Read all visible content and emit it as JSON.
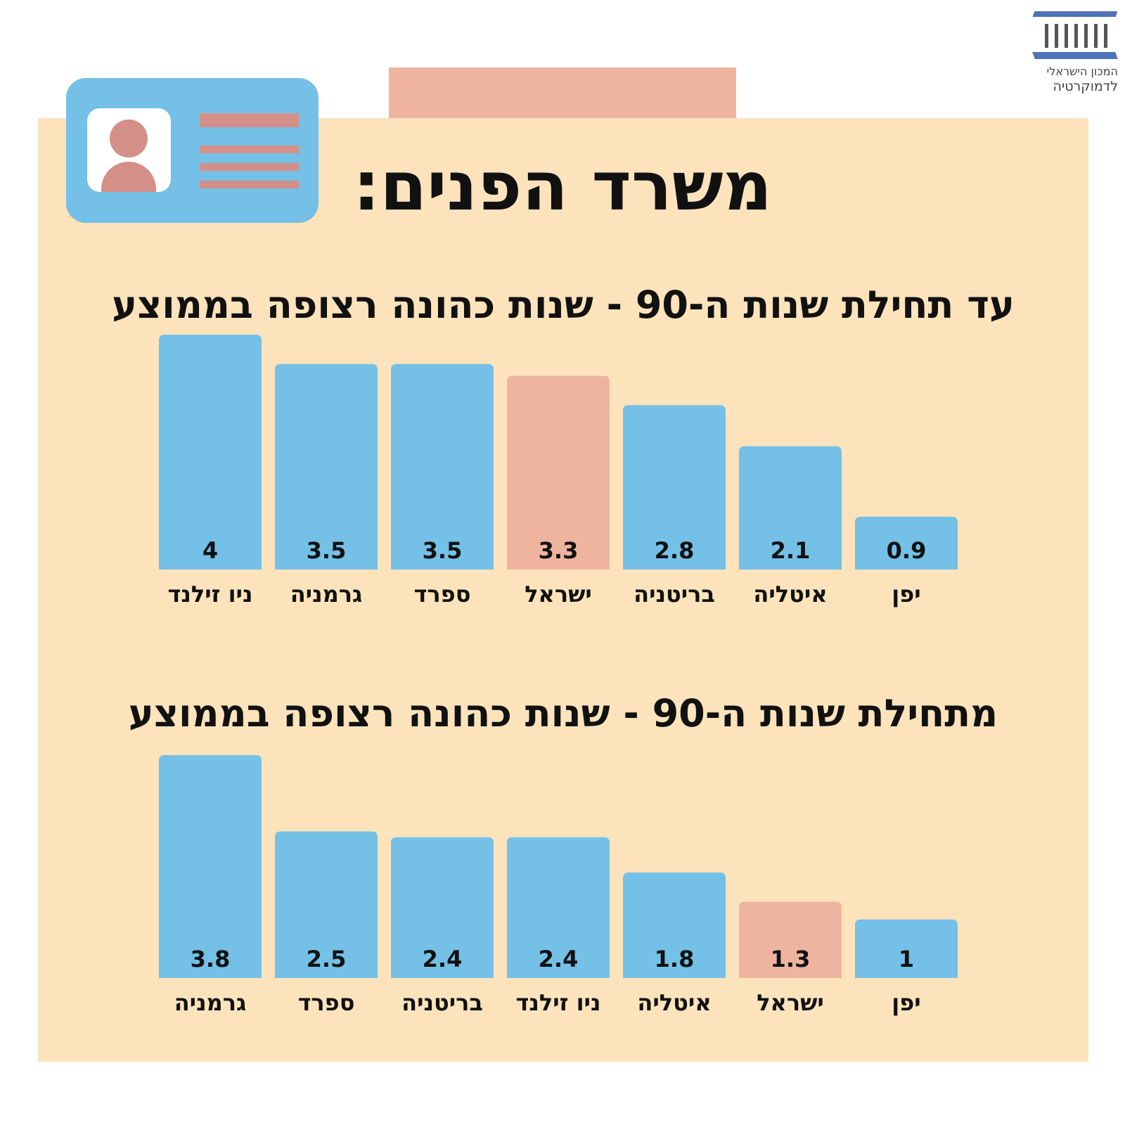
{
  "header": {
    "title": "משרד הפנים:",
    "logo": {
      "line1": "המכון הישראלי",
      "line2": "לדמוקרטיה",
      "icon": "building-columns-icon",
      "color": "#4f73b8"
    }
  },
  "colors": {
    "panel": "#fce3bb",
    "bar": "#74c0e6",
    "bar_highlight": "#efb4a0",
    "text": "#111111"
  },
  "chart_data": [
    {
      "type": "bar",
      "title": "עד תחילת שנות ה-90 - שנות כהונה רצופה בממוצע",
      "categories": [
        "ניו זילנד",
        "גרמניה",
        "ספרד",
        "ישראל",
        "בריטניה",
        "איטליה",
        "יפן"
      ],
      "values": [
        4,
        3.5,
        3.5,
        3.3,
        2.8,
        2.1,
        0.9
      ],
      "value_labels": [
        "4",
        "3.5",
        "3.5",
        "3.3",
        "2.8",
        "2.1",
        "0.9"
      ],
      "highlight": "ישראל",
      "ylim": [
        0,
        4
      ]
    },
    {
      "type": "bar",
      "title": "מתחילת שנות ה-90 - שנות כהונה רצופה בממוצע",
      "categories": [
        "גרמניה",
        "ספרד",
        "בריטניה",
        "ניו זילנד",
        "איטליה",
        "ישראל",
        "יפן"
      ],
      "values": [
        3.8,
        2.5,
        2.4,
        2.4,
        1.8,
        1.3,
        1
      ],
      "value_labels": [
        "3.8",
        "2.5",
        "2.4",
        "2.4",
        "1.8",
        "1.3",
        "1"
      ],
      "highlight": "ישראל",
      "ylim": [
        0,
        3.8
      ]
    }
  ]
}
